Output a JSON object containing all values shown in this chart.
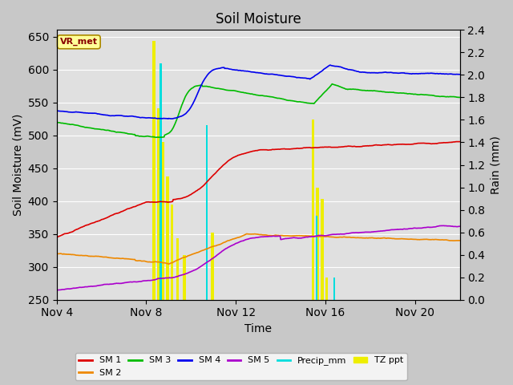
{
  "title": "Soil Moisture",
  "xlabel": "Time",
  "ylabel_left": "Soil Moisture (mV)",
  "ylabel_right": "Rain (mm)",
  "ylim_left": [
    250,
    660
  ],
  "ylim_right": [
    0.0,
    2.4
  ],
  "yticks_left": [
    250,
    300,
    350,
    400,
    450,
    500,
    550,
    600,
    650
  ],
  "yticks_right": [
    0.0,
    0.2,
    0.4,
    0.6,
    0.8,
    1.0,
    1.2,
    1.4,
    1.6,
    1.8,
    2.0,
    2.2,
    2.4
  ],
  "xlim": [
    4,
    22
  ],
  "xtick_labels": [
    "Nov 4",
    "Nov 8",
    "Nov 12",
    "Nov 16",
    "Nov 20"
  ],
  "xtick_positions": [
    4,
    8,
    12,
    16,
    20
  ],
  "fig_bg_color": "#c8c8c8",
  "plot_bg_color": "#e0e0e0",
  "sm1_color": "#dd0000",
  "sm2_color": "#ee8800",
  "sm3_color": "#00bb00",
  "sm4_color": "#0000ee",
  "sm5_color": "#aa00cc",
  "precip_color": "#00dddd",
  "tz_ppt_color": "#eeee00",
  "annotation_label": "VR_met",
  "annotation_fg": "#880000",
  "annotation_bg": "#ffff99",
  "annotation_edge": "#aa8800",
  "figsize": [
    6.4,
    4.8
  ],
  "dpi": 100
}
